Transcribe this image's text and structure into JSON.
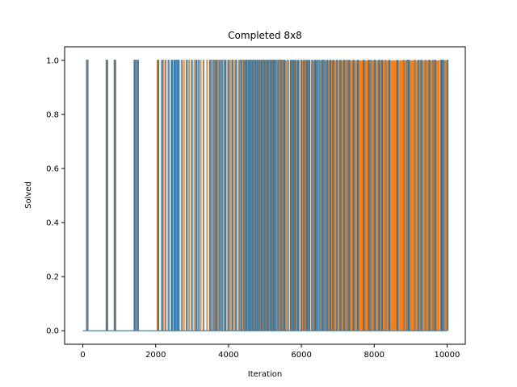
{
  "chart_data": {
    "type": "line",
    "title": "Completed 8x8",
    "xlabel": "Iteration",
    "ylabel": "Solved",
    "xlim": [
      -500,
      10500
    ],
    "ylim": [
      -0.05,
      1.05
    ],
    "xticks": [
      0,
      2000,
      4000,
      6000,
      8000,
      10000
    ],
    "xtick_labels": [
      "0",
      "2000",
      "4000",
      "6000",
      "8000",
      "10000"
    ],
    "yticks": [
      0.0,
      0.2,
      0.4,
      0.6,
      0.8,
      1.0
    ],
    "ytick_labels": [
      "0.0",
      "0.2",
      "0.4",
      "0.6",
      "0.8",
      "1.0"
    ],
    "grid": false,
    "legend": "none",
    "x_range": [
      0,
      10000
    ],
    "series": [
      {
        "color": "#ff7f0e",
        "dense_regions": [
          [
            5300,
            5330
          ],
          [
            5500,
            5600
          ],
          [
            5680,
            5950
          ],
          [
            6000,
            6250
          ],
          [
            6300,
            6450
          ],
          [
            6500,
            6950
          ],
          [
            7000,
            8900
          ],
          [
            8950,
            9200
          ],
          [
            9230,
            9800
          ],
          [
            9830,
            9990
          ]
        ],
        "spikes": [
          100,
          640,
          860,
          1400,
          1480,
          2040,
          2200,
          2420,
          2520,
          2600,
          2760,
          2900,
          3050,
          3220,
          3400,
          3560,
          3640,
          3700,
          3780,
          3880,
          3960,
          4060,
          4160,
          4300,
          4380,
          4440,
          4500,
          4560,
          4620,
          4680,
          4740,
          4800,
          4860,
          4920,
          4980,
          5040,
          5100,
          5160,
          5220,
          5270,
          5330,
          5400,
          5450,
          5480
        ]
      },
      {
        "color": "#1f77b4",
        "spikes": [
          100,
          640,
          860,
          1420,
          1500,
          2060,
          2160,
          2340,
          2440,
          2500,
          2560,
          2620,
          2840,
          2980,
          3100,
          3160,
          3480,
          3600,
          3660,
          3740,
          3820,
          3900,
          4000,
          4100,
          4200,
          4340,
          4420,
          4480,
          4540,
          4600,
          4660,
          4720,
          4780,
          4840,
          4900,
          4960,
          5020,
          5080,
          5140,
          5200,
          5250,
          5360,
          5430,
          5520,
          5620,
          5700,
          5760,
          5820,
          5900,
          5980,
          6060,
          6140,
          6200,
          6280,
          6360,
          6420,
          6480,
          6560,
          6620,
          6700,
          6780,
          6860,
          6960,
          7060,
          7160,
          7300,
          7420,
          7540,
          7700,
          7840,
          8000,
          8120,
          8200,
          8400,
          8620,
          8900,
          8940,
          9200,
          9280,
          9500,
          9660,
          9820,
          9860,
          10000
        ]
      },
      {
        "color": "#7f7f7f",
        "spikes": [
          120,
          660,
          880,
          1440,
          2260,
          2700,
          3300,
          3520,
          4280,
          5310,
          5470,
          6080,
          6600,
          7240,
          7900,
          8300,
          8800,
          9100,
          9400,
          9600,
          9900
        ]
      }
    ]
  }
}
